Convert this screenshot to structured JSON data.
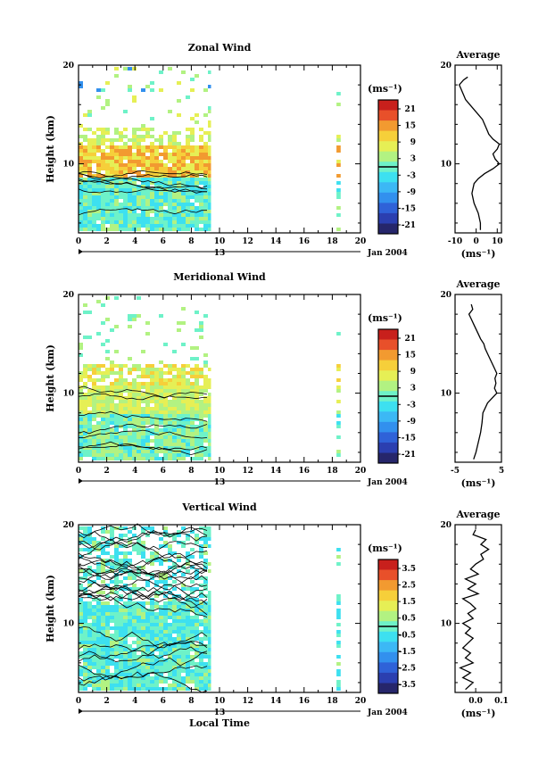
{
  "chart_data": [
    {
      "type": "heatmap",
      "title": "Zonal Wind",
      "ylabel": "Height (km)",
      "xlabel": "",
      "unit_label": "(ms⁻¹)",
      "xlim": [
        0,
        20
      ],
      "ylim": [
        3,
        20
      ],
      "x_ticks": [
        "0",
        "2",
        "4",
        "6",
        "8",
        "10",
        "12",
        "14",
        "16",
        "18",
        "20"
      ],
      "y_ticks": [
        "10",
        "20"
      ],
      "date_tick": "13",
      "date_label": "Jan 2004",
      "colorbar_ticks": [
        "21",
        "15",
        "9",
        "3",
        "-3",
        "-9",
        "-15",
        "-21"
      ],
      "data_coverage_hours": [
        [
          0,
          9.4
        ],
        [
          18.3,
          18.6
        ]
      ],
      "average_profile": {
        "title": "Average",
        "xlim": [
          -10,
          12
        ],
        "x_ticks": [
          "-10",
          "0",
          "10"
        ],
        "y_ticks": [
          "10",
          "20"
        ],
        "xlabel": "(ms⁻¹)",
        "height_km": [
          3.3,
          4,
          5,
          6,
          7,
          8,
          8.5,
          9,
          9.5,
          10,
          10.5,
          11,
          11.5,
          12,
          12.5,
          13,
          13.5,
          14,
          14.5,
          15,
          15.5,
          16,
          16.5,
          17,
          17.5,
          18,
          18.5,
          18.8
        ],
        "values": [
          2,
          2,
          1,
          -1,
          -2,
          -1,
          1,
          4,
          8,
          11,
          9,
          8,
          10,
          11,
          8,
          6,
          5,
          4,
          3,
          1,
          -1,
          -3,
          -5,
          -6,
          -7,
          -8,
          -6,
          -4
        ]
      }
    },
    {
      "type": "heatmap",
      "title": "Meridional Wind",
      "ylabel": "Height (km)",
      "xlabel": "",
      "unit_label": "(ms⁻¹)",
      "xlim": [
        0,
        20
      ],
      "ylim": [
        3,
        20
      ],
      "x_ticks": [
        "0",
        "2",
        "4",
        "6",
        "8",
        "10",
        "12",
        "14",
        "16",
        "18",
        "20"
      ],
      "y_ticks": [
        "10",
        "20"
      ],
      "date_tick": "13",
      "date_label": "Jan 2004",
      "colorbar_ticks": [
        "21",
        "15",
        "9",
        "3",
        "-3",
        "-9",
        "-15",
        "-21"
      ],
      "data_coverage_hours": [
        [
          0,
          9.4
        ],
        [
          18.3,
          18.6
        ]
      ],
      "average_profile": {
        "title": "Average",
        "xlim": [
          -5,
          5
        ],
        "x_ticks": [
          "-5",
          "5"
        ],
        "y_ticks": [
          "10",
          "20"
        ],
        "xlabel": "(ms⁻¹)",
        "height_km": [
          3.3,
          4,
          5,
          6,
          7,
          8,
          8.5,
          9,
          9.5,
          10,
          10.5,
          11,
          11.5,
          12,
          12.5,
          13,
          13.5,
          14,
          14.5,
          15,
          15.5,
          16,
          16.5,
          17,
          17.5,
          18,
          18.5,
          19
        ],
        "values": [
          -1,
          -0.5,
          0,
          0.5,
          0.8,
          1,
          1.5,
          2,
          3,
          4,
          3.5,
          3.8,
          3.6,
          4,
          3.5,
          3,
          2.5,
          2,
          1.5,
          1.2,
          0.5,
          0,
          -0.5,
          -1,
          -1.5,
          -2,
          -1.2,
          -1.5
        ]
      }
    },
    {
      "type": "heatmap",
      "title": "Vertical Wind",
      "ylabel": "Height (km)",
      "xlabel": "Local Time",
      "unit_label": "(ms⁻¹)",
      "xlim": [
        0,
        20
      ],
      "ylim": [
        3,
        20
      ],
      "x_ticks": [
        "0",
        "2",
        "4",
        "6",
        "8",
        "10",
        "12",
        "14",
        "16",
        "18",
        "20"
      ],
      "y_ticks": [
        "10",
        "20"
      ],
      "date_tick": "13",
      "date_label": "Jan 2004",
      "colorbar_ticks": [
        "3.5",
        "2.5",
        "1.5",
        "0.5",
        "-0.5",
        "-1.5",
        "-2.5",
        "-3.5"
      ],
      "data_coverage_hours": [
        [
          0,
          9.4
        ],
        [
          18.3,
          18.6
        ]
      ],
      "average_profile": {
        "title": "Average",
        "xlim": [
          -0.08,
          0.1
        ],
        "x_ticks": [
          "0.0",
          "0.1"
        ],
        "y_ticks": [
          "10",
          "20"
        ],
        "xlabel": "(ms⁻¹)",
        "height_km": [
          3.3,
          4,
          4.5,
          5,
          5.5,
          6,
          6.5,
          7,
          7.5,
          8,
          8.5,
          9,
          9.5,
          10,
          10.5,
          11,
          11.5,
          12,
          12.5,
          13,
          13.5,
          14,
          14.5,
          15,
          15.5,
          16,
          16.5,
          17,
          17.5,
          18,
          18.5,
          19,
          19.5
        ],
        "values": [
          -0.04,
          -0.01,
          -0.05,
          -0.02,
          -0.06,
          -0.01,
          -0.04,
          -0.02,
          -0.05,
          -0.03,
          -0.01,
          -0.04,
          -0.02,
          -0.05,
          -0.01,
          -0.03,
          0.0,
          -0.02,
          -0.05,
          0.01,
          -0.03,
          0.0,
          -0.04,
          0.01,
          -0.02,
          0.0,
          0.03,
          0.02,
          0.05,
          0.02,
          0.04,
          -0.01,
          0.0
        ]
      }
    }
  ],
  "colors": {
    "colormap": [
      "#26266b",
      "#2b3fb0",
      "#2f62d8",
      "#3290ee",
      "#3cb8f5",
      "#3de0f0",
      "#6ef2c8",
      "#b2f282",
      "#e6ef55",
      "#f6cf3a",
      "#f29a30",
      "#e8502a",
      "#c8201c"
    ]
  }
}
